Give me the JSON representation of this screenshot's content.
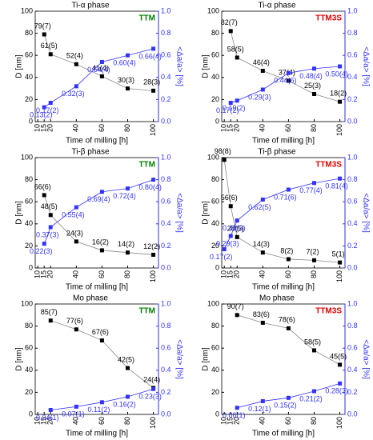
{
  "chart_data": [
    {
      "type": "line",
      "title": "Ti-α phase",
      "annotation": "TTM",
      "annotation_color": "#008000",
      "xlabel": "Time of milling [h]",
      "ylabel": "D [nm]",
      "y2label": "<Δa/a> [%]",
      "x": [
        15,
        20,
        40,
        60,
        80,
        100
      ],
      "xlim": [
        8,
        104
      ],
      "xticks": [
        10,
        15,
        20,
        40,
        60,
        80,
        100
      ],
      "ylim": [
        0,
        100
      ],
      "yticks": [
        0,
        20,
        40,
        60,
        80,
        100
      ],
      "y2lim": [
        0,
        1.0
      ],
      "y2ticks": [
        {
          "value": 0,
          "label": "0.0"
        },
        0.2,
        0.4,
        0.6,
        0.8,
        {
          "value": 1,
          "label": "1.0"
        }
      ],
      "series": [
        {
          "color": "#000000",
          "values": [
            79,
            61,
            52,
            41,
            30,
            28
          ],
          "value_labels": [
            "79(7)",
            "61(5)",
            "52(4)",
            "41(4)",
            "30(3)",
            "28(3)"
          ]
        },
        {
          "color": "#3333ff",
          "axis": "y2",
          "values": [
            0.13,
            0.17,
            0.32,
            0.54,
            0.6,
            0.66
          ],
          "value_labels": [
            "0.13(2)",
            "0.17(2)",
            "0.32(3)",
            "0.54(4)",
            "0.60(4)",
            "0.66(4)"
          ]
        }
      ]
    },
    {
      "type": "line",
      "title": "Ti-α phase",
      "annotation": "TTM3S",
      "annotation_color": "#e00000",
      "xlabel": "Time of milling [h]",
      "ylabel": "D [nm]",
      "y2label": "<Δa/a> [%]",
      "x": [
        15,
        20,
        40,
        60,
        80,
        100
      ],
      "xlim": [
        8,
        104
      ],
      "xticks": [
        10,
        15,
        20,
        40,
        60,
        80,
        100
      ],
      "ylim": [
        0,
        100
      ],
      "yticks": [
        0,
        20,
        40,
        60,
        80,
        100
      ],
      "y2lim": [
        0,
        1.0
      ],
      "y2ticks": [
        {
          "value": 0,
          "label": "0.0"
        },
        0.2,
        0.4,
        0.6,
        0.8,
        {
          "value": 1,
          "label": "1.0"
        }
      ],
      "series": [
        {
          "color": "#000000",
          "values": [
            82,
            58,
            46,
            37,
            25,
            18
          ],
          "value_labels": [
            "82(7)",
            "58(5)",
            "46(4)",
            "37(4)",
            "25(3)",
            "18(2)"
          ]
        },
        {
          "color": "#3333ff",
          "axis": "y2",
          "values": [
            0.17,
            0.19,
            0.29,
            0.44,
            0.48,
            0.5
          ],
          "value_labels": [
            "0.17(2)",
            "0.19(2)",
            "0.29(3)",
            "0.44(6)",
            "0.48(4)",
            "0.50(4)"
          ]
        }
      ]
    },
    {
      "type": "line",
      "title": "Ti-β phase",
      "annotation": "TTM",
      "annotation_color": "#008000",
      "xlabel": "Time of milling [h]",
      "ylabel": "D [nm]",
      "y2label": "<Δa/a> [%]",
      "x": [
        15,
        20,
        40,
        60,
        80,
        100
      ],
      "xlim": [
        8,
        104
      ],
      "xticks": [
        10,
        15,
        20,
        40,
        60,
        80,
        100
      ],
      "ylim": [
        0,
        100
      ],
      "yticks": [
        0,
        20,
        40,
        60,
        80,
        100
      ],
      "y2lim": [
        0,
        1.0
      ],
      "y2ticks": [
        {
          "value": 0,
          "label": "0.0"
        },
        0.2,
        0.4,
        0.6,
        0.8,
        {
          "value": 1,
          "label": "1.0"
        }
      ],
      "series": [
        {
          "color": "#000000",
          "values": [
            66,
            48,
            24,
            16,
            14,
            12
          ],
          "value_labels": [
            "66(6)",
            "48(5)",
            "24(3)",
            "16(2)",
            "14(2)",
            "12(2)"
          ]
        },
        {
          "color": "#3333ff",
          "axis": "y2",
          "values": [
            0.22,
            0.37,
            0.55,
            0.69,
            0.72,
            0.8
          ],
          "value_labels": [
            "0.22(3)",
            "0.37(3)",
            "0.55(4)",
            "0.69(4)",
            "0.72(4)",
            "0.80(4)"
          ]
        }
      ]
    },
    {
      "type": "line",
      "title": "Ti-β phase",
      "annotation": "TTM3S",
      "annotation_color": "#e00000",
      "xlabel": "Time of milling [h]",
      "ylabel": "D [nm]",
      "y2label": "<Δa/a> [%]",
      "x": [
        10,
        15,
        20,
        40,
        60,
        80,
        100
      ],
      "xlim": [
        8,
        104
      ],
      "xticks": [
        10,
        15,
        20,
        40,
        60,
        80,
        100
      ],
      "ylim": [
        0,
        100
      ],
      "yticks": [
        0,
        20,
        40,
        60,
        80,
        100
      ],
      "y2lim": [
        0,
        1.0
      ],
      "y2ticks": [
        {
          "value": 0,
          "label": "0.0"
        },
        0.2,
        0.4,
        0.6,
        0.8,
        {
          "value": 1,
          "label": "1.0"
        }
      ],
      "series": [
        {
          "color": "#000000",
          "values": [
            98,
            56,
            28,
            14,
            8,
            7,
            5
          ],
          "value_labels": [
            "98(8)",
            "56(6)",
            "28(5)",
            "14(3)",
            "8(2)",
            "7(2)",
            "5(1)"
          ]
        },
        {
          "color": "#3333ff",
          "axis": "y2",
          "values": [
            0.17,
            0.29,
            0.43,
            0.62,
            0.71,
            0.77,
            0.81
          ],
          "value_labels": [
            "0.17(2)",
            "0.29(3)",
            "0.43(3)",
            "0.62(5)",
            "0.71(6)",
            "0.77(4)",
            "0.81(4)"
          ]
        }
      ]
    },
    {
      "type": "line",
      "title": "Mo phase",
      "annotation": "TTM",
      "annotation_color": "#008000",
      "xlabel": "Time of milling [h]",
      "ylabel": "D [nm]",
      "y2label": "<Δa/a> [%]",
      "x": [
        20,
        40,
        60,
        80,
        100
      ],
      "xlim": [
        8,
        104
      ],
      "xticks": [
        10,
        15,
        20,
        40,
        60,
        80,
        100
      ],
      "ylim": [
        0,
        100
      ],
      "yticks": [
        0,
        20,
        40,
        60,
        80,
        100
      ],
      "y2lim": [
        0,
        1.0
      ],
      "y2ticks": [
        {
          "value": 0,
          "label": "0.0"
        },
        0.2,
        0.4,
        0.6,
        0.8,
        {
          "value": 1,
          "label": "1.0"
        }
      ],
      "series": [
        {
          "color": "#000000",
          "values": [
            85,
            77,
            67,
            42,
            24
          ],
          "value_labels": [
            "85(7)",
            "77(6)",
            "67(6)",
            "42(5)",
            "24(4)"
          ]
        },
        {
          "color": "#3333ff",
          "axis": "y2",
          "values": [
            0.04,
            0.07,
            0.11,
            0.16,
            0.23
          ],
          "value_labels": [
            "0.04(1)",
            "0.07(1)",
            "0.11(2)",
            "0.16(2)",
            "0.23(3)"
          ]
        }
      ]
    },
    {
      "type": "line",
      "title": "Mo phase",
      "annotation": "TTM3S",
      "annotation_color": "#e00000",
      "xlabel": "Time of milling [h]",
      "ylabel": "D [nm]",
      "y2label": "<Δa/a> [%]",
      "x": [
        20,
        40,
        60,
        80,
        100
      ],
      "xlim": [
        8,
        104
      ],
      "xticks": [
        10,
        15,
        20,
        40,
        60,
        80,
        100
      ],
      "ylim": [
        0,
        100
      ],
      "yticks": [
        0,
        20,
        40,
        60,
        80,
        100
      ],
      "y2lim": [
        0,
        1.0
      ],
      "y2ticks": [
        {
          "value": 0,
          "label": "0.0"
        },
        0.2,
        0.4,
        0.6,
        0.8,
        {
          "value": 1,
          "label": "1.0"
        }
      ],
      "series": [
        {
          "color": "#000000",
          "values": [
            90,
            83,
            78,
            58,
            45
          ],
          "value_labels": [
            "90(7)",
            "83(6)",
            "78(6)",
            "58(5)",
            "45(5)"
          ]
        },
        {
          "color": "#3333ff",
          "axis": "y2",
          "values": [
            0.06,
            0.12,
            0.15,
            0.21,
            0.28
          ],
          "value_labels": [
            "0.06(1)",
            "0.12(1)",
            "0.15(2)",
            "0.21(2)",
            "0.28(3)"
          ]
        }
      ]
    }
  ]
}
